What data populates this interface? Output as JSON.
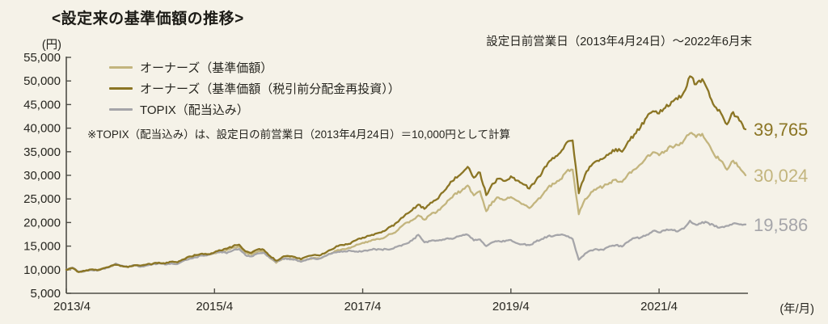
{
  "title": "<設定来の基準価額の推移>",
  "period_label": "設定日前営業日（2013年4月24日）～2022年6月末",
  "unit_label": "(円)",
  "x_axis_unit": "(年/月)",
  "footnote": "※TOPIX（配当込み）は、設定日の前営業日（2013年4月24日）＝10,000円として計算",
  "chart_data": {
    "type": "line",
    "title": "設定来の基準価額の推移",
    "ylabel": "円",
    "xlabel": "年/月",
    "ylim": [
      5000,
      55000
    ],
    "y_tick_step": 5000,
    "y_ticks": [
      5000,
      10000,
      15000,
      20000,
      25000,
      30000,
      35000,
      40000,
      45000,
      50000,
      55000
    ],
    "x_ticks": [
      {
        "label": "2013/4",
        "month": 0
      },
      {
        "label": "2015/4",
        "month": 24
      },
      {
        "label": "2017/4",
        "month": 48
      },
      {
        "label": "2019/4",
        "month": 72
      },
      {
        "label": "2021/4",
        "month": 96
      }
    ],
    "x_months_total": 110,
    "grid": false,
    "legend_position": "top-left",
    "series": [
      {
        "name": "オーナーズ（基準価額）",
        "color": "#c3b57e",
        "end_label": "30,024",
        "end_value": 30024,
        "values": [
          10000,
          10350,
          9500,
          9750,
          10050,
          9900,
          10300,
          10650,
          11050,
          10800,
          10550,
          10950,
          10850,
          11100,
          11250,
          11500,
          11300,
          11700,
          11550,
          12200,
          12800,
          13050,
          13350,
          13200,
          13500,
          13850,
          14150,
          14650,
          14900,
          13550,
          13200,
          13850,
          13750,
          12450,
          11450,
          12250,
          12400,
          12200,
          11700,
          12250,
          12500,
          12400,
          12950,
          13550,
          14200,
          14350,
          14600,
          15300,
          15700,
          16050,
          16350,
          16600,
          17250,
          17750,
          18900,
          19950,
          20450,
          21500,
          20600,
          21700,
          22250,
          23500,
          24850,
          26200,
          26700,
          27850,
          25750,
          26650,
          22400,
          24400,
          25300,
          24800,
          25400,
          24600,
          23900,
          23050,
          24350,
          25650,
          27400,
          28200,
          29150,
          30800,
          31200,
          21750,
          24950,
          26450,
          27300,
          27650,
          28450,
          29100,
          28600,
          30300,
          31250,
          32350,
          33950,
          34900,
          34250,
          35150,
          36100,
          36400,
          37350,
          38900,
          38100,
          38800,
          36700,
          34200,
          33100,
          31200,
          33100,
          31700,
          30024
        ]
      },
      {
        "name": "オーナーズ（基準価額（税引前分配金再投資））",
        "color": "#8b7524",
        "end_label": "39,765",
        "end_value": 39765,
        "values": [
          10000,
          10350,
          9500,
          9750,
          10050,
          9900,
          10300,
          10650,
          11050,
          10800,
          10550,
          10950,
          10850,
          11100,
          11250,
          11500,
          11300,
          11700,
          11550,
          12200,
          12800,
          13100,
          13400,
          13300,
          13700,
          14100,
          14450,
          15000,
          15300,
          13900,
          13600,
          14300,
          14200,
          12900,
          11900,
          12700,
          12900,
          12700,
          12200,
          12800,
          13100,
          13000,
          13600,
          14300,
          15000,
          15200,
          15500,
          16300,
          16800,
          17200,
          17600,
          17900,
          18700,
          19300,
          20600,
          21800,
          22600,
          23800,
          22900,
          24200,
          24900,
          26400,
          28000,
          29600,
          30400,
          31800,
          29500,
          30600,
          25800,
          28200,
          29300,
          28800,
          29800,
          28900,
          28100,
          27200,
          28800,
          30400,
          32600,
          33600,
          34800,
          36900,
          37400,
          26200,
          30100,
          32000,
          33100,
          33600,
          34700,
          35600,
          35000,
          37200,
          38700,
          40200,
          42300,
          43600,
          43100,
          44300,
          45600,
          46100,
          47600,
          51000,
          49300,
          50400,
          47800,
          44600,
          43200,
          40800,
          43400,
          41600,
          39765
        ]
      },
      {
        "name": "TOPIX（配当込み）",
        "color": "#a5a5a9",
        "end_label": "19,586",
        "end_value": 19586,
        "values": [
          10000,
          10450,
          9550,
          9700,
          9950,
          9800,
          10200,
          10550,
          11300,
          10850,
          10600,
          10950,
          10600,
          10900,
          11150,
          11350,
          11100,
          11350,
          11200,
          11900,
          12350,
          12600,
          13000,
          13150,
          13600,
          13750,
          13500,
          14100,
          14400,
          13100,
          12800,
          13450,
          13600,
          12500,
          11700,
          12350,
          12300,
          12200,
          11700,
          12150,
          12400,
          12350,
          12900,
          13400,
          13800,
          13900,
          14000,
          13850,
          13900,
          14150,
          14350,
          14300,
          14300,
          14500,
          15100,
          15500,
          16200,
          17400,
          15800,
          16100,
          16200,
          16400,
          16550,
          16800,
          17200,
          17400,
          16200,
          16400,
          15000,
          15800,
          16100,
          16000,
          16300,
          15600,
          15400,
          15200,
          15900,
          16500,
          17100,
          17200,
          17400,
          17100,
          16500,
          12100,
          13400,
          14100,
          14300,
          14200,
          15000,
          15200,
          14900,
          15900,
          16700,
          16800,
          17400,
          18200,
          17900,
          18300,
          18500,
          18100,
          18700,
          20400,
          19500,
          20100,
          19900,
          19200,
          19000,
          19300,
          19800,
          19600,
          19586
        ]
      }
    ]
  }
}
